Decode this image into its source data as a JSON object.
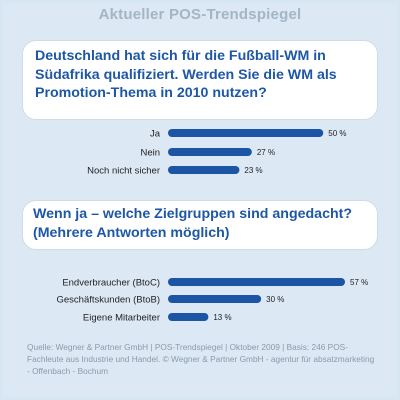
{
  "header": {
    "title": "Aktueller POS-Trendspiegel"
  },
  "colors": {
    "bar": "#1c55a4",
    "question": "#1d57a5",
    "background": "#dce9f5"
  },
  "footer": {
    "text": "Quelle: Wegner & Partner GmbH | POS-Trendspiegel | Oktober 2009 | Basis: 246 POS-Fachleute aus Industrie und Handel. © Wegner & Partner GmbH - agentur für absatzmarketing - Offenbach - Bochum"
  },
  "chart_data": [
    {
      "type": "bar",
      "orientation": "horizontal",
      "title": "Deutschland hat sich für die Fußball-WM in Südafrika qualifiziert. Werden Sie die WM als Promotion-Thema in 2010 nutzen?",
      "categories": [
        "Ja",
        "Nein",
        "Noch nicht sicher"
      ],
      "values": [
        50,
        27,
        23
      ],
      "labels": [
        "50 %",
        "27 %",
        "23 %"
      ],
      "unit": "%",
      "xlim": [
        0,
        57
      ]
    },
    {
      "type": "bar",
      "orientation": "horizontal",
      "title": "Wenn ja – welche Zielgruppen sind angedacht? (Mehrere Antworten möglich)",
      "categories": [
        "Endverbraucher (BtoC)",
        "Geschäftskunden (BtoB)",
        "Eigene Mitarbeiter"
      ],
      "values": [
        57,
        30,
        13
      ],
      "labels": [
        "57 %",
        "30 %",
        "13 %"
      ],
      "unit": "%",
      "xlim": [
        0,
        57
      ]
    }
  ]
}
